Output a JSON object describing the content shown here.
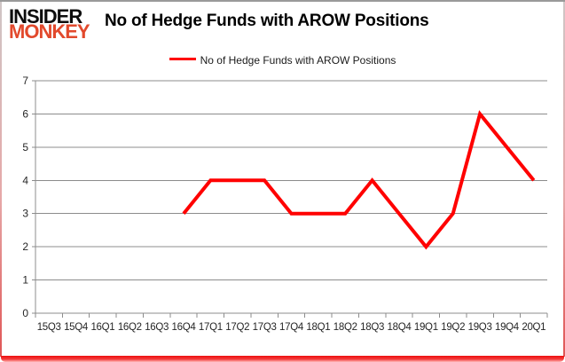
{
  "logo": {
    "line1": "INSIDER",
    "line2": "MONKEY"
  },
  "title": "No of Hedge Funds with AROW Positions",
  "legend": {
    "label": "No of Hedge Funds with AROW Positions"
  },
  "colors": {
    "line": "#ff0000",
    "grid": "#8c8c8c",
    "axis": "#8c8c8c",
    "axis_text": "#262626",
    "logo_accent": "#e2492c",
    "bottom_border": "#ee0f0f"
  },
  "chart_data": {
    "type": "line",
    "categories": [
      "15Q3",
      "15Q4",
      "16Q1",
      "16Q2",
      "16Q3",
      "16Q4",
      "17Q1",
      "17Q2",
      "17Q3",
      "17Q4",
      "18Q1",
      "18Q2",
      "18Q3",
      "18Q4",
      "19Q1",
      "19Q2",
      "19Q3",
      "19Q4",
      "20Q1"
    ],
    "series": [
      {
        "name": "No of Hedge Funds with AROW Positions",
        "values": [
          null,
          null,
          null,
          null,
          null,
          3,
          4,
          4,
          4,
          3,
          3,
          3,
          4,
          3,
          2,
          3,
          6,
          5,
          4
        ]
      }
    ],
    "title": "No of Hedge Funds with AROW Positions",
    "xlabel": "",
    "ylabel": "",
    "ylim": [
      0,
      7
    ],
    "ytick_step": 1,
    "grid": true,
    "legend_position": "top-center"
  }
}
